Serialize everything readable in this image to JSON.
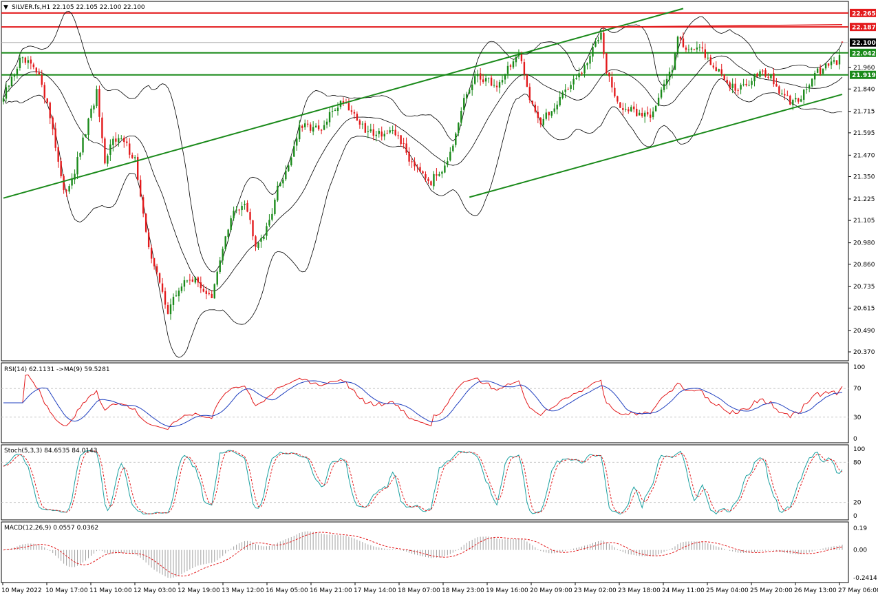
{
  "header": {
    "arrow": "▼",
    "title": "SILVER.fs,H1  22.105 22.105 22.100 22.100"
  },
  "chart_data": {
    "type": "candlestick",
    "symbol": "SILVER.fs",
    "timeframe": "H1",
    "ylim": [
      20.32,
      22.33
    ],
    "y_ticks": [
      "22.265",
      "22.187",
      "22.100",
      "22.042",
      "21.960",
      "21.919",
      "21.840",
      "21.715",
      "21.595",
      "21.470",
      "21.350",
      "21.225",
      "21.105",
      "20.980",
      "20.860",
      "20.735",
      "20.615",
      "20.490",
      "20.370"
    ],
    "y_tick_values": [
      22.265,
      22.187,
      22.1,
      22.042,
      21.96,
      21.919,
      21.84,
      21.715,
      21.595,
      21.47,
      21.35,
      21.225,
      21.105,
      20.98,
      20.86,
      20.735,
      20.615,
      20.49,
      20.37
    ],
    "highlight_labels": [
      {
        "value": 22.265,
        "label": "22.265",
        "color": "#e31a1c"
      },
      {
        "value": 22.187,
        "label": "22.187",
        "color": "#e31a1c"
      },
      {
        "value": 22.1,
        "label": "22.100",
        "color": "#000000"
      },
      {
        "value": 22.042,
        "label": "22.042",
        "color": "#1a8a1a"
      },
      {
        "value": 21.919,
        "label": "21.919",
        "color": "#1a8a1a"
      }
    ],
    "horizontal_lines": [
      {
        "value": 22.265,
        "color": "#e31a1c"
      },
      {
        "value": 22.187,
        "color": "#e31a1c"
      },
      {
        "value": 22.042,
        "color": "#1a8a1a"
      },
      {
        "value": 21.919,
        "color": "#1a8a1a"
      }
    ],
    "x_labels": [
      "10 May 2022",
      "10 May 17:00",
      "11 May 10:00",
      "12 May 03:00",
      "12 May 19:00",
      "13 May 12:00",
      "16 May 05:00",
      "16 May 21:00",
      "17 May 14:00",
      "18 May 07:00",
      "18 May 23:00",
      "19 May 16:00",
      "20 May 09:00",
      "23 May 02:00",
      "23 May 18:00",
      "24 May 11:00",
      "25 May 04:00",
      "25 May 20:00",
      "26 May 13:00",
      "27 May 06:00"
    ],
    "price_anchors": [
      [
        0,
        21.79
      ],
      [
        6,
        22.0
      ],
      [
        10,
        21.97
      ],
      [
        14,
        21.88
      ],
      [
        18,
        21.62
      ],
      [
        22,
        21.25
      ],
      [
        26,
        21.38
      ],
      [
        30,
        21.6
      ],
      [
        34,
        21.82
      ],
      [
        37,
        21.4
      ],
      [
        40,
        21.58
      ],
      [
        44,
        21.54
      ],
      [
        48,
        21.45
      ],
      [
        52,
        21.02
      ],
      [
        56,
        20.8
      ],
      [
        60,
        20.6
      ],
      [
        64,
        20.72
      ],
      [
        68,
        20.79
      ],
      [
        72,
        20.74
      ],
      [
        76,
        20.66
      ],
      [
        80,
        20.96
      ],
      [
        84,
        21.15
      ],
      [
        88,
        21.22
      ],
      [
        92,
        20.98
      ],
      [
        96,
        21.05
      ],
      [
        100,
        21.28
      ],
      [
        104,
        21.42
      ],
      [
        108,
        21.62
      ],
      [
        112,
        21.63
      ],
      [
        116,
        21.6
      ],
      [
        120,
        21.72
      ],
      [
        124,
        21.78
      ],
      [
        128,
        21.7
      ],
      [
        132,
        21.6
      ],
      [
        136,
        21.6
      ],
      [
        140,
        21.59
      ],
      [
        144,
        21.58
      ],
      [
        148,
        21.45
      ],
      [
        152,
        21.4
      ],
      [
        156,
        21.32
      ],
      [
        160,
        21.4
      ],
      [
        164,
        21.5
      ],
      [
        168,
        21.78
      ],
      [
        172,
        21.9
      ],
      [
        176,
        21.9
      ],
      [
        180,
        21.85
      ],
      [
        184,
        21.96
      ],
      [
        188,
        22.03
      ],
      [
        192,
        21.8
      ],
      [
        196,
        21.65
      ],
      [
        200,
        21.72
      ],
      [
        204,
        21.82
      ],
      [
        208,
        21.88
      ],
      [
        212,
        21.95
      ],
      [
        216,
        22.1
      ],
      [
        218,
        22.17
      ],
      [
        220,
        21.95
      ],
      [
        224,
        21.75
      ],
      [
        228,
        21.72
      ],
      [
        232,
        21.7
      ],
      [
        236,
        21.7
      ],
      [
        240,
        21.82
      ],
      [
        244,
        21.97
      ],
      [
        246,
        22.15
      ],
      [
        248,
        22.07
      ],
      [
        252,
        22.08
      ],
      [
        256,
        22.03
      ],
      [
        260,
        21.95
      ],
      [
        264,
        21.88
      ],
      [
        268,
        21.83
      ],
      [
        272,
        21.88
      ],
      [
        276,
        21.95
      ],
      [
        280,
        21.9
      ],
      [
        284,
        21.8
      ],
      [
        288,
        21.76
      ],
      [
        292,
        21.82
      ],
      [
        296,
        21.92
      ],
      [
        300,
        21.96
      ],
      [
        304,
        22.0
      ],
      [
        306,
        22.1
      ]
    ],
    "channel_lines": [
      {
        "from": [
          0,
          21.23
        ],
        "to": [
          248,
          22.29
        ],
        "color": "#1a8a1a"
      },
      {
        "from": [
          170,
          21.235
        ],
        "to": [
          306,
          21.81
        ],
        "color": "#1a8a1a"
      }
    ],
    "resistance_line": {
      "from": [
        222,
        22.187
      ],
      "to": [
        306,
        22.2
      ],
      "color": "#e31a1c"
    },
    "bollinger": {
      "period": 20,
      "deviation": 2,
      "color": "#000000"
    },
    "indicators": {
      "rsi": {
        "label": "RSI(14) 62.1131  ->MA(9) 59.5281",
        "ylim": [
          0,
          100
        ],
        "scale_labels": [
          "100",
          "70",
          "30",
          "0"
        ],
        "levels": [
          70,
          30
        ],
        "rsi_color": "#e31a1c",
        "ma_color": "#1f3fbf"
      },
      "stoch": {
        "label": "Stoch(5,3,3) 84.6535 84.0143",
        "ylim": [
          0,
          100
        ],
        "scale_labels": [
          "100",
          "80",
          "20",
          "0"
        ],
        "levels": [
          80,
          20
        ],
        "k_color": "#1aa0a0",
        "d_color": "#e31a1c"
      },
      "macd": {
        "label": "MACD(12,26,9) 0.0557 0.0362",
        "ylim": [
          -0.26,
          0.22
        ],
        "scale_labels": [
          "0.19",
          "0.00",
          "-0.2414"
        ],
        "scale_values": [
          0.19,
          0.0,
          -0.2414
        ],
        "hist_color": "#a0a0a0",
        "signal_color": "#e31a1c"
      }
    },
    "colors": {
      "bull": "#1a8a1a",
      "bear": "#e31a1c",
      "grid": "#c8c8c8",
      "text": "#000000"
    }
  }
}
